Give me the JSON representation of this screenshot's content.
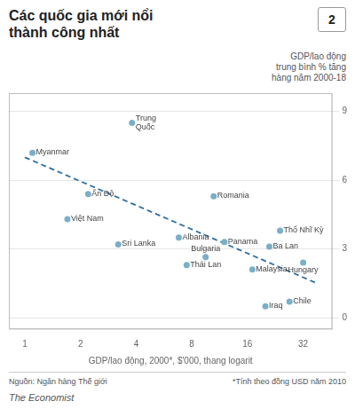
{
  "chart_data": {
    "type": "scatter",
    "title": "Các quốc gia mới nổi\nthành công nhất",
    "subtitle": "GDP/lao động\ntrung bình % tăng\nhàng năm 2000-18",
    "xlabel": "GDP/lao động, 2000*, $'000, thang logarit",
    "log": "x",
    "xlim": [
      0.82,
      46
    ],
    "xticks": [
      1,
      2,
      4,
      8,
      16,
      32
    ],
    "ylim": [
      -0.5,
      9.8
    ],
    "yticks": [
      0,
      3,
      6,
      9
    ],
    "grid": true,
    "series": [
      {
        "type": "scatter",
        "marker": "circle",
        "color": "#7aafc8",
        "x": [
          1.1,
          1.7,
          2.2,
          3.8,
          3.2,
          6.8,
          7.5,
          9.5,
          10.5,
          12.0,
          17.0,
          21.0,
          24.0,
          20.0,
          32.0,
          27.0
        ],
        "values": [
          7.2,
          4.3,
          5.4,
          8.5,
          3.2,
          3.5,
          2.3,
          2.65,
          5.3,
          3.3,
          2.1,
          3.1,
          3.8,
          0.5,
          2.4,
          0.7
        ],
        "labels": [
          "Myanmar",
          "Việt Nam",
          "Ấn Độ",
          "Trung\nQuốc",
          "Sri Lanka",
          "Albania",
          "Thái Lan",
          "Bulgaria",
          "Romania",
          "Panama",
          "Malaysia",
          "Ba Lan",
          "Thổ Nhĩ Kỳ",
          "Iraq",
          "Hungary",
          "Chile"
        ]
      },
      {
        "type": "line",
        "line_style": "dashed",
        "color": "#2e6fa3",
        "x": [
          1.0,
          38.0
        ],
        "values": [
          7.0,
          1.5
        ]
      }
    ],
    "footnotes": [
      "Nguồn: Ngân hàng Thế giới",
      "*Tính theo đồng USD năm 2010"
    ],
    "branding": "The Economist",
    "chart_number": "2"
  }
}
